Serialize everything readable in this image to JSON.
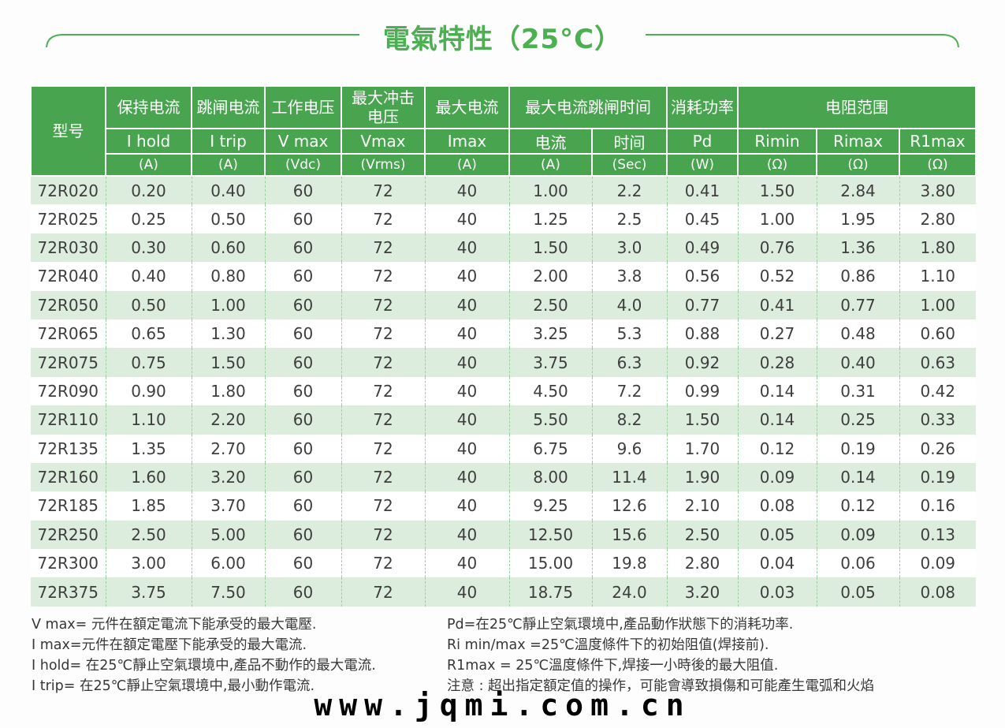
{
  "title": "電氣特性（25°C）",
  "watermark": "www.jqmi.com.cn",
  "colors": {
    "header_green": "#48a44f",
    "row_stripe_green": "#dceddd",
    "title_green": "#4cb052",
    "dashed_grid": "#9bcf9f",
    "text_dark": "#3e3e3e"
  },
  "table": {
    "header": {
      "model": "型号",
      "columns": [
        {
          "cn": "保持电流",
          "symbol": "I hold",
          "unit": "(A)"
        },
        {
          "cn": "跳闸电流",
          "symbol": "I trip",
          "unit": "(A)"
        },
        {
          "cn": "工作电压",
          "symbol": "V max",
          "unit": "(Vdc)"
        },
        {
          "cn": "最大冲击\n电压",
          "symbol": "Vmax",
          "unit": "(Vrms)"
        },
        {
          "cn": "最大电流",
          "symbol": "Imax",
          "unit": "(A)"
        },
        {
          "cn": "最大电流跳闸时间",
          "sub": [
            {
              "symbol": "电流",
              "unit": "(A)"
            },
            {
              "symbol": "时间",
              "unit": "(Sec)"
            }
          ]
        },
        {
          "cn": "消耗功率",
          "symbol": "Pd",
          "unit": "(W)"
        },
        {
          "cn": "电阻范围",
          "sub": [
            {
              "symbol": "Rimin",
              "unit": "(Ω)"
            },
            {
              "symbol": "Rimax",
              "unit": "(Ω)"
            },
            {
              "symbol": "R1max",
              "unit": "(Ω)"
            }
          ]
        }
      ]
    },
    "rows": [
      [
        "72R020",
        "0.20",
        "0.40",
        "60",
        "72",
        "40",
        "1.00",
        "2.2",
        "0.41",
        "1.50",
        "2.84",
        "3.80"
      ],
      [
        "72R025",
        "0.25",
        "0.50",
        "60",
        "72",
        "40",
        "1.25",
        "2.5",
        "0.45",
        "1.00",
        "1.95",
        "2.80"
      ],
      [
        "72R030",
        "0.30",
        "0.60",
        "60",
        "72",
        "40",
        "1.50",
        "3.0",
        "0.49",
        "0.76",
        "1.36",
        "1.80"
      ],
      [
        "72R040",
        "0.40",
        "0.80",
        "60",
        "72",
        "40",
        "2.00",
        "3.8",
        "0.56",
        "0.52",
        "0.86",
        "1.10"
      ],
      [
        "72R050",
        "0.50",
        "1.00",
        "60",
        "72",
        "40",
        "2.50",
        "4.0",
        "0.77",
        "0.41",
        "0.77",
        "1.00"
      ],
      [
        "72R065",
        "0.65",
        "1.30",
        "60",
        "72",
        "40",
        "3.25",
        "5.3",
        "0.88",
        "0.27",
        "0.48",
        "0.60"
      ],
      [
        "72R075",
        "0.75",
        "1.50",
        "60",
        "72",
        "40",
        "3.75",
        "6.3",
        "0.92",
        "0.28",
        "0.40",
        "0.63"
      ],
      [
        "72R090",
        "0.90",
        "1.80",
        "60",
        "72",
        "40",
        "4.50",
        "7.2",
        "0.99",
        "0.14",
        "0.31",
        "0.42"
      ],
      [
        "72R110",
        "1.10",
        "2.20",
        "60",
        "72",
        "40",
        "5.50",
        "8.2",
        "1.50",
        "0.14",
        "0.25",
        "0.33"
      ],
      [
        "72R135",
        "1.35",
        "2.70",
        "60",
        "72",
        "40",
        "6.75",
        "9.6",
        "1.70",
        "0.12",
        "0.19",
        "0.26"
      ],
      [
        "72R160",
        "1.60",
        "3.20",
        "60",
        "72",
        "40",
        "8.00",
        "11.4",
        "1.90",
        "0.09",
        "0.14",
        "0.19"
      ],
      [
        "72R185",
        "1.85",
        "3.70",
        "60",
        "72",
        "40",
        "9.25",
        "12.6",
        "2.10",
        "0.08",
        "0.12",
        "0.16"
      ],
      [
        "72R250",
        "2.50",
        "5.00",
        "60",
        "72",
        "40",
        "12.50",
        "15.6",
        "2.50",
        "0.05",
        "0.09",
        "0.13"
      ],
      [
        "72R300",
        "3.00",
        "6.00",
        "60",
        "72",
        "40",
        "15.00",
        "19.8",
        "2.80",
        "0.04",
        "0.06",
        "0.09"
      ],
      [
        "72R375",
        "3.75",
        "7.50",
        "60",
        "72",
        "40",
        "18.75",
        "24.0",
        "3.20",
        "0.03",
        "0.05",
        "0.08"
      ]
    ]
  },
  "notes": {
    "left": [
      "V max= 元件在額定電流下能承受的最大電壓.",
      "I max=元件在額定電壓下能承受的最大電流.",
      "I hold= 在25℃靜止空氣環境中,產品不動作的最大電流.",
      "I trip= 在25℃靜止空氣環境中,最小動作電流."
    ],
    "right": [
      "Pd=在25℃靜止空氣環境中,產品動作狀態下的消耗功率.",
      "Ri min/max  =25℃溫度條件下的初始阻值(焊接前).",
      "R1max  = 25℃溫度條件下,焊接一小時後的最大阻值.",
      "注意 : 超出指定額定值的操作，可能會導致損傷和可能產生電弧和火焰"
    ]
  }
}
